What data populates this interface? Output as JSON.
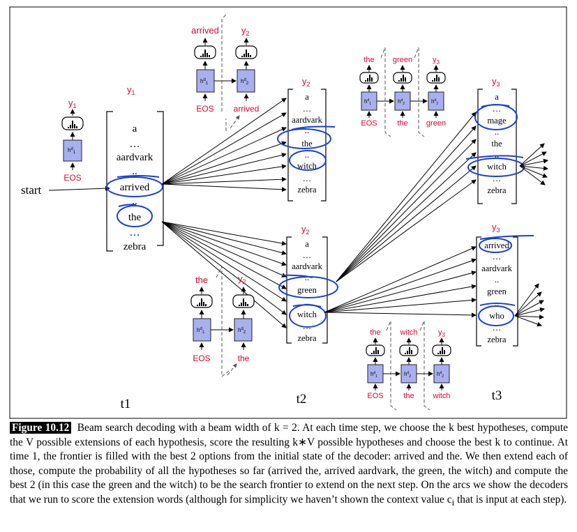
{
  "diagram": {
    "start_label": "start",
    "time_labels": [
      "t1",
      "t2",
      "t3"
    ],
    "y1": "y",
    "y1_sub": "1",
    "t1_vocab": {
      "a": "a",
      "d1": "…",
      "aardvark": "aardvark",
      "d2": "..",
      "arrived": "arrived",
      "d3": "..",
      "the": "the",
      "d4": "…",
      "zebra": "zebra"
    },
    "t2_top_vocab": {
      "a": "a",
      "d1": "…",
      "aardvark": "aardvark",
      "d2": "..",
      "the": "the",
      "d3": "..",
      "witch": "witch",
      "d4": "…",
      "zebra": "zebra"
    },
    "t2_bot_vocab": {
      "a": "a",
      "d1": "…",
      "aardvark": "aardvark",
      "d2": "..",
      "green": "green",
      "d3": "..",
      "witch": "witch",
      "d4": "…",
      "zebra": "zebra"
    },
    "t3_top_vocab": {
      "a": "a",
      "d1": "…",
      "mage": "mage",
      "d2": "..",
      "the": "the",
      "d3": "..",
      "witch": "witch",
      "d4": "…",
      "zebra": "zebra"
    },
    "t3_bot_vocab": {
      "arrived": "arrived",
      "d1": "…",
      "aardvark": "aardvark",
      "d2": "..",
      "green": "green",
      "d3": "..",
      "who": "who",
      "d4": "…",
      "zebra": "zebra"
    },
    "decoders": {
      "eos": "EOS",
      "h": "h",
      "d": "d",
      "sub1": "1",
      "sub2": "2",
      "dec_t1": {
        "y": "y",
        "ysub": "1",
        "input": "EOS"
      },
      "dec_arrived": {
        "out1": "arrived",
        "y": "y",
        "ysub": "2",
        "in1": "EOS",
        "in2": "arrived"
      },
      "dec_the": {
        "out1": "the",
        "y": "y",
        "ysub": "2",
        "in1": "EOS",
        "in2": "the"
      },
      "dec_the_green": {
        "out1": "the",
        "out2": "green",
        "y": "y",
        "ysub": "3",
        "in1": "EOS",
        "in2": "the",
        "in3": "green"
      },
      "dec_the_witch": {
        "out1": "the",
        "out2": "witch",
        "y": "y",
        "ysub": "3",
        "in1": "EOS",
        "in2": "the",
        "in3": "witch"
      },
      "sub3": "3"
    }
  },
  "caption": {
    "figure_label": "Figure 10.12",
    "text": "Beam search decoding with a beam width of k = 2. At each time step, we choose the k best hypotheses, compute the V possible extensions of each hypothesis, score the resulting k∗V possible hypotheses and choose the best k to continue. At time 1, the frontier is filled with the best 2 options from the initial state of the decoder: arrived and the. We then extend each of those, compute the probability of all the hypotheses so far (arrived the, arrived aardvark, the green, the witch) and compute the best 2 (in this case the green and the witch) to be the search frontier to extend on the next step. On the arcs we show the decoders that we run to score the extension words (although for simplicity we haven’t shown the context value c",
    "text_sub": "i",
    "text_end": " that is input at each step)."
  },
  "colors": {
    "red": "#e8002a",
    "blue_circle": "#1a3fe0",
    "hidden_state": "#a8b0ee"
  }
}
